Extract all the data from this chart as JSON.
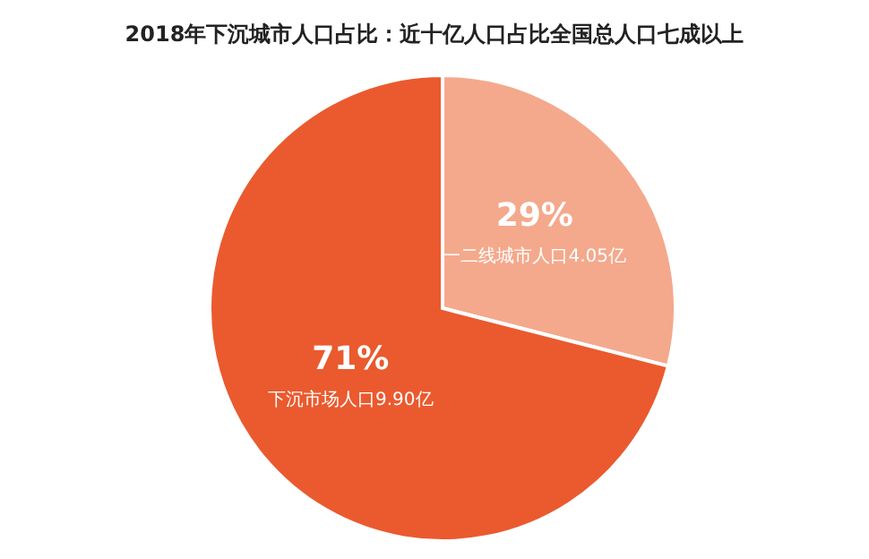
{
  "chart_data": {
    "type": "pie",
    "title": "2018年下沉城市人口占比：近十亿人口占比全国总人口七成以上",
    "categories": [
      "一二线城市人口4.05亿",
      "下沉市场人口9.90亿"
    ],
    "values": [
      29,
      71
    ],
    "value_labels": [
      "29%",
      "71%"
    ],
    "colors": [
      "#f4a98c",
      "#ea5a2e"
    ]
  }
}
